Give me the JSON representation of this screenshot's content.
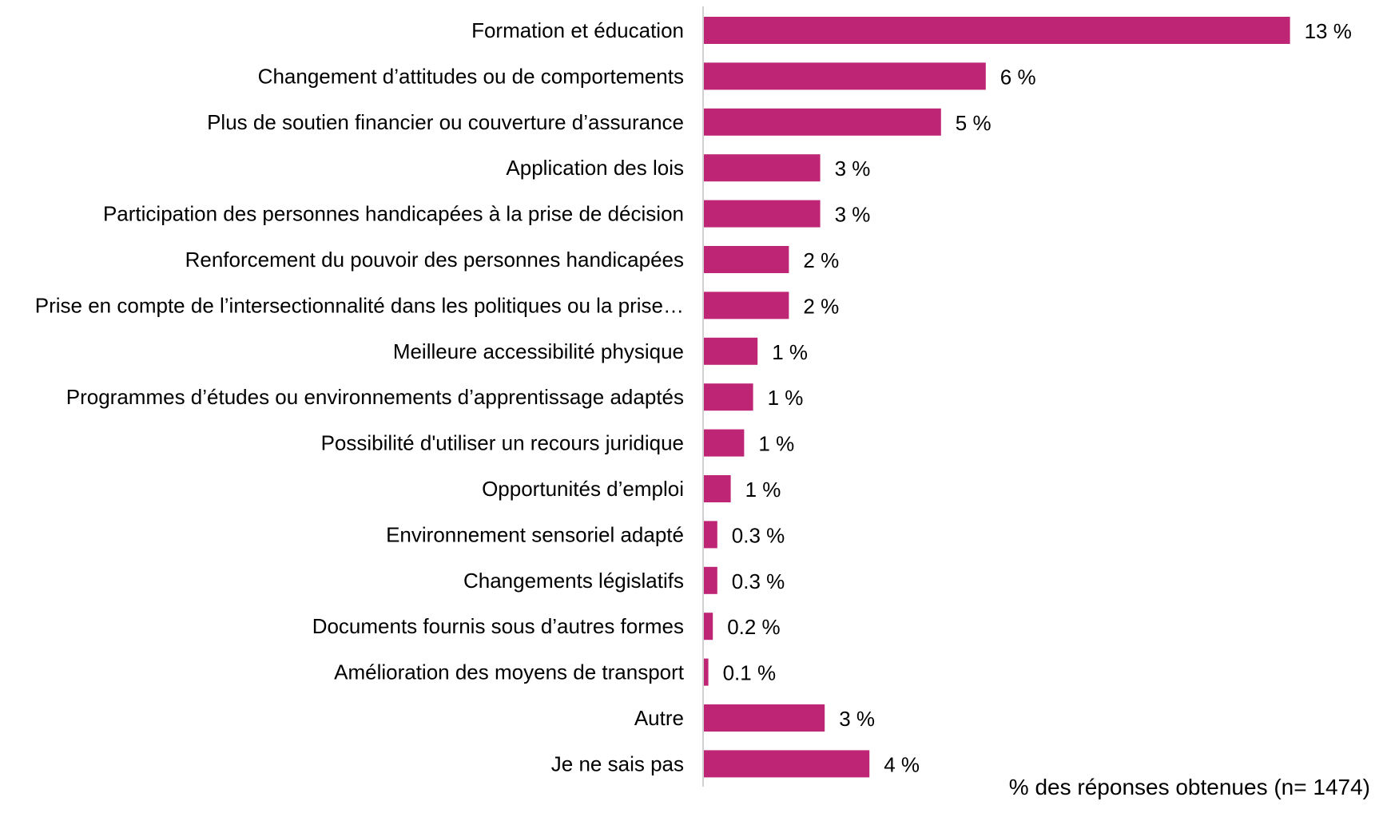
{
  "chart_data": {
    "type": "bar",
    "orientation": "horizontal",
    "xlabel": "% des réponses obtenues (n= 1474)",
    "ylabel": "",
    "xlim": [
      0,
      14
    ],
    "grid": false,
    "legend": "none",
    "bar_color": "#BE2574",
    "axis_color": "#D0D0D0",
    "categories": [
      "Formation et éducation",
      "Changement d’attitudes ou de comportements",
      "Plus de soutien financier ou couverture  d’assurance",
      "Application des lois",
      "Participation des personnes handicapées à la prise de décision",
      "Renforcement du pouvoir des personnes handicapées",
      "Prise en compte de l’intersectionnalité dans les politiques ou la prise…",
      "Meilleure accessibilité physique",
      "Programmes d’études ou environnements  d’apprentissage adaptés",
      "Possibilité d'utiliser un recours juridique",
      "Opportunités d’emploi",
      "Environnement sensoriel adapté",
      "Changements législatifs",
      "Documents fournis sous d’autres formes",
      "Amélioration des moyens de transport",
      "Autre",
      "Je ne sais pas"
    ],
    "values": [
      13.1,
      6.3,
      5.3,
      2.6,
      2.6,
      1.9,
      1.9,
      1.2,
      1.1,
      0.9,
      0.6,
      0.3,
      0.3,
      0.2,
      0.1,
      2.7,
      3.7
    ],
    "data_labels": [
      "13 %",
      "6 %",
      "5 %",
      "3 %",
      "3 %",
      "2 %",
      "2 %",
      "1 %",
      "1 %",
      "1 %",
      "1 %",
      "0.3 %",
      "0.3 %",
      "0.2 %",
      "0.1 %",
      "3 %",
      "4 %"
    ]
  }
}
